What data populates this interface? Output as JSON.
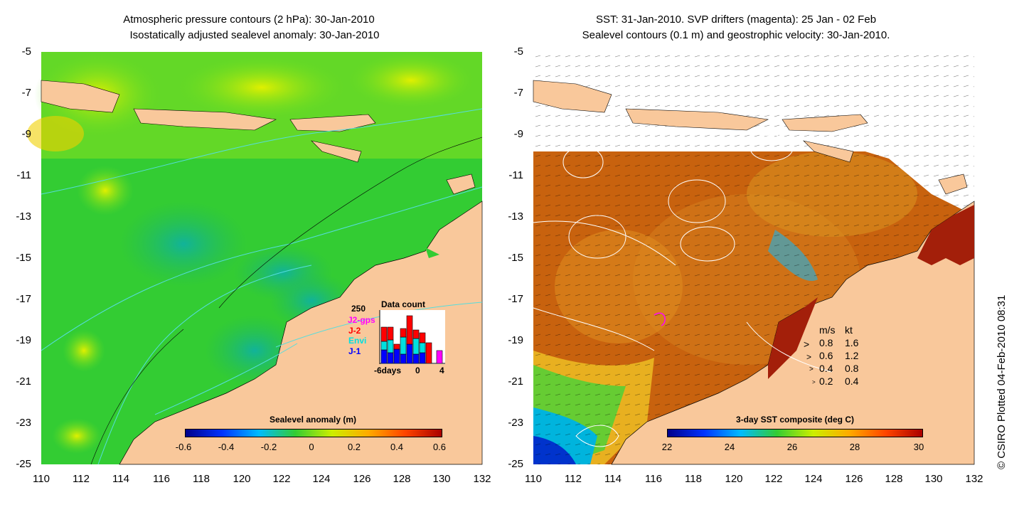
{
  "left": {
    "title_line1": "Atmospheric pressure contours (2 hPa): 30-Jan-2010",
    "title_line2": "Isostatically adjusted sealevel anomaly: 30-Jan-2010",
    "colorbar_label": "Sealevel anomaly (m)",
    "colorbar_ticks": [
      "-0.6",
      "-0.4",
      "-0.2",
      "0",
      "0.2",
      "0.4",
      "0.6"
    ],
    "inset": {
      "title": "Data count",
      "ymax_label": "250",
      "series": [
        {
          "name": "J2-gps",
          "color": "#ff00ff"
        },
        {
          "name": "J-2",
          "color": "#ff0000"
        },
        {
          "name": "Envi",
          "color": "#00e0e0"
        },
        {
          "name": "J-1",
          "color": "#0000ff"
        }
      ],
      "xticks": [
        "-6days",
        "0",
        "4"
      ]
    }
  },
  "right": {
    "title_line1": "SST: 31-Jan-2010. SVP drifters (magenta): 25 Jan - 02 Feb",
    "title_line2": "Sealevel contours (0.1 m) and geostrophic velocity: 30-Jan-2010.",
    "colorbar_label": "3-day SST composite (deg C)",
    "colorbar_ticks": [
      "22",
      "24",
      "26",
      "28",
      "30"
    ],
    "velocity_legend": {
      "header_ms": "m/s",
      "header_kt": "kt",
      "rows": [
        {
          "ms": "0.8",
          "kt": "1.6"
        },
        {
          "ms": "0.6",
          "kt": "1.2"
        },
        {
          "ms": "0.4",
          "kt": "0.8"
        },
        {
          "ms": "0.2",
          "kt": "0.4"
        }
      ]
    }
  },
  "axes": {
    "y_ticks": [
      "-5",
      "-7",
      "-9",
      "-11",
      "-13",
      "-15",
      "-17",
      "-19",
      "-21",
      "-23",
      "-25"
    ],
    "x_ticks": [
      "110",
      "112",
      "114",
      "116",
      "118",
      "120",
      "122",
      "124",
      "126",
      "128",
      "130",
      "132"
    ]
  },
  "credit": "© CSIRO Plotted 04-Feb-2010 08:31",
  "colors": {
    "land": "#f9c89b",
    "sea_anomaly_base": "#33cc33",
    "sst_base": "#d2691e"
  }
}
